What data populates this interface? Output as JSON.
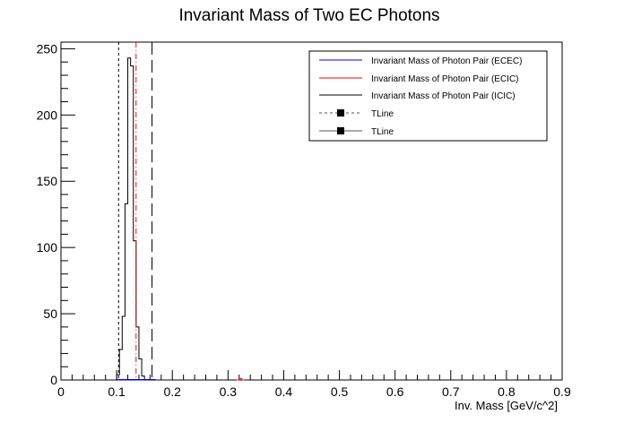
{
  "chart_data": {
    "type": "histogram",
    "title": "Invariant Mass of Two EC Photons",
    "xlabel": "Inv. Mass [GeV/c^2]",
    "ylabel": "",
    "xlim": [
      0,
      0.9
    ],
    "ylim": [
      0,
      255
    ],
    "x_ticks": [
      "0",
      "0.1",
      "0.2",
      "0.3",
      "0.4",
      "0.5",
      "0.6",
      "0.7",
      "0.8",
      "0.9"
    ],
    "y_ticks": [
      "0",
      "50",
      "100",
      "150",
      "200",
      "250"
    ],
    "bin_width": 0.005,
    "series": [
      {
        "name": "Invariant Mass of Photon Pair (ECEC)",
        "color": "#0000ff",
        "bins_start": 0.1,
        "values": [
          0,
          0,
          0,
          0,
          0,
          0,
          0,
          0,
          0,
          0,
          0,
          0,
          0
        ]
      },
      {
        "name": "Invariant Mass of Photon Pair (ECIC)",
        "color": "#ff0000",
        "bins_start": 0.315,
        "values": [
          0,
          1,
          0
        ]
      },
      {
        "name": "Invariant Mass of Photon Pair (ICIC)",
        "color": "#000000",
        "bins_start": 0.1,
        "values": [
          4,
          23,
          48,
          133,
          243,
          237,
          105,
          40,
          16,
          3,
          0,
          0,
          0
        ]
      }
    ],
    "vertical_lines": [
      {
        "name": "TLine",
        "x": 0.1035,
        "style": "dashed",
        "color": "#000000"
      },
      {
        "name": "TLine",
        "x": 0.1349,
        "style": "dashdot",
        "color": "#ff0000"
      },
      {
        "name": "TLine",
        "x": 0.1635,
        "style": "longdash",
        "color": "#000000"
      }
    ],
    "legend": {
      "position": "top-right",
      "entries": [
        {
          "label": "Invariant Mass of Photon Pair (ECEC)",
          "color": "#0000ff",
          "style": "line"
        },
        {
          "label": "Invariant Mass of Photon Pair (ECIC)",
          "color": "#ff0000",
          "style": "line"
        },
        {
          "label": "Invariant Mass of Photon Pair (ICIC)",
          "color": "#000000",
          "style": "line"
        },
        {
          "label": "TLine",
          "color": "#000000",
          "style": "dashed-marker"
        },
        {
          "label": "TLine",
          "color": "#000000",
          "style": "solid-marker"
        }
      ]
    }
  }
}
